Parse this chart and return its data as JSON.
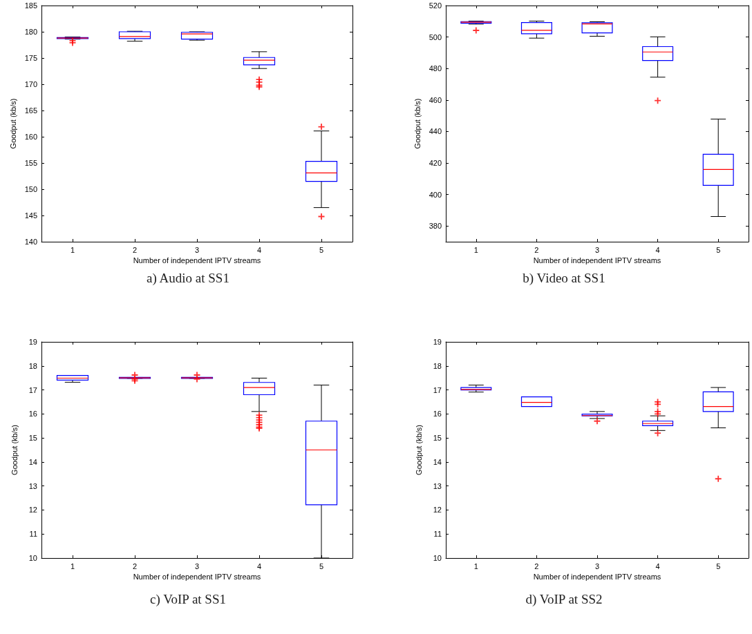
{
  "chart_data": [
    {
      "type": "box",
      "title": "a) Audio at SS1",
      "xlabel": "Number of independent IPTV streams",
      "ylabel": "Goodput (kb/s)",
      "categories": [
        "1",
        "2",
        "3",
        "4",
        "5"
      ],
      "color": "#0000ff",
      "ylim": [
        140,
        185
      ],
      "yticks": [
        140,
        145,
        150,
        155,
        160,
        165,
        170,
        175,
        180,
        185
      ],
      "grid": false,
      "boxes": [
        {
          "low": 178.6,
          "q1": 178.7,
          "median": 178.8,
          "q3": 178.9,
          "high": 179.0,
          "outliers": [
            178.3,
            177.9
          ]
        },
        {
          "low": 178.2,
          "q1": 178.7,
          "median": 179.1,
          "q3": 180.0,
          "high": 180.1
        },
        {
          "low": 178.4,
          "q1": 178.6,
          "median": 179.6,
          "q3": 179.9,
          "high": 180.0
        },
        {
          "low": 173.0,
          "q1": 173.7,
          "median": 174.6,
          "q3": 175.1,
          "high": 176.2,
          "outliers": [
            170.9,
            170.4,
            169.8,
            169.5
          ]
        },
        {
          "low": 146.5,
          "q1": 151.5,
          "median": 153.1,
          "q3": 155.3,
          "high": 161.1,
          "outliers": [
            161.9,
            144.8
          ]
        }
      ]
    },
    {
      "type": "box",
      "title": "b) Video at SS1",
      "xlabel": "Number of independent IPTV streams",
      "ylabel": "Goodput (kb/s)",
      "categories": [
        "1",
        "2",
        "3",
        "4",
        "5"
      ],
      "color": "#0000ff",
      "ylim": [
        370,
        520
      ],
      "yticks": [
        380,
        400,
        420,
        440,
        460,
        480,
        500,
        520
      ],
      "grid": false,
      "boxes": [
        {
          "low": 508.2,
          "q1": 508.8,
          "median": 509.4,
          "q3": 509.8,
          "high": 510.1,
          "outliers": [
            504.2
          ]
        },
        {
          "low": 499.3,
          "q1": 502.1,
          "median": 504.3,
          "q3": 509.2,
          "high": 510.1
        },
        {
          "low": 500.5,
          "q1": 502.6,
          "median": 508.3,
          "q3": 509.1,
          "high": 509.7
        },
        {
          "low": 474.5,
          "q1": 485.1,
          "median": 490.5,
          "q3": 493.9,
          "high": 500.1,
          "outliers": [
            459.6
          ]
        },
        {
          "low": 386.0,
          "q1": 405.8,
          "median": 415.9,
          "q3": 425.5,
          "high": 447.9
        }
      ]
    },
    {
      "type": "box",
      "title": "c) VoIP at SS1",
      "xlabel": "Number of independent IPTV streams",
      "ylabel": "Goodput (kb/s)",
      "categories": [
        "1",
        "2",
        "3",
        "4",
        "5"
      ],
      "color": "#0000ff",
      "ylim": [
        10,
        19
      ],
      "yticks": [
        10,
        11,
        12,
        13,
        14,
        15,
        16,
        17,
        18,
        19
      ],
      "grid": false,
      "boxes": [
        {
          "low": 17.32,
          "q1": 17.41,
          "median": 17.49,
          "q3": 17.6,
          "high": 17.6
        },
        {
          "low": 17.48,
          "q1": 17.48,
          "median": 17.5,
          "q3": 17.52,
          "high": 17.52,
          "outliers": [
            17.62,
            17.45,
            17.38
          ]
        },
        {
          "low": 17.48,
          "q1": 17.48,
          "median": 17.5,
          "q3": 17.52,
          "high": 17.52,
          "outliers": [
            17.62,
            17.45
          ]
        },
        {
          "low": 16.1,
          "q1": 16.8,
          "median": 17.1,
          "q3": 17.31,
          "high": 17.49,
          "outliers": [
            15.95,
            15.85,
            15.75,
            15.65,
            15.55,
            15.45,
            15.4
          ]
        },
        {
          "low": 10,
          "q1": 12.22,
          "median": 14.5,
          "q3": 15.7,
          "high": 17.2
        }
      ]
    },
    {
      "type": "box",
      "title": "d) VoIP at SS2",
      "xlabel": "Number of independent IPTV streams",
      "ylabel": "Goodput (kb/s)",
      "categories": [
        "1",
        "2",
        "3",
        "4",
        "5"
      ],
      "color": "#0000ff",
      "ylim": [
        10,
        19
      ],
      "yticks": [
        10,
        11,
        12,
        13,
        14,
        15,
        16,
        17,
        18,
        19
      ],
      "grid": false,
      "boxes": [
        {
          "low": 16.91,
          "q1": 17.0,
          "median": 17.02,
          "q3": 17.1,
          "high": 17.2
        },
        {
          "low": 16.31,
          "q1": 16.31,
          "median": 16.48,
          "q3": 16.71,
          "high": 16.71
        },
        {
          "low": 15.81,
          "q1": 15.92,
          "median": 15.93,
          "q3": 15.99,
          "high": 16.1,
          "outliers": [
            15.7
          ]
        },
        {
          "low": 15.31,
          "q1": 15.51,
          "median": 15.6,
          "q3": 15.7,
          "high": 15.92,
          "outliers": [
            16.5,
            16.4,
            16.1,
            16.0,
            15.2
          ]
        },
        {
          "low": 15.42,
          "q1": 16.1,
          "median": 16.31,
          "q3": 16.92,
          "high": 17.1,
          "outliers": [
            13.3
          ]
        }
      ]
    }
  ]
}
